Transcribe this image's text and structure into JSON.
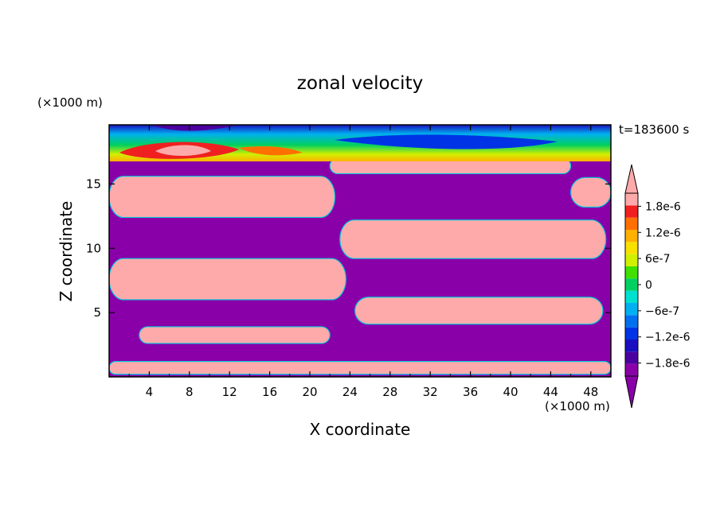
{
  "chart_data": {
    "type": "heatmap",
    "title": "zonal velocity",
    "xlabel": "X coordinate",
    "ylabel": "Z coordinate",
    "x_unit": "(×1000 m)",
    "y_unit": "(×1000 m)",
    "time_label": "t=183600 s",
    "xlim": [
      0,
      50
    ],
    "ylim": [
      0,
      19.6
    ],
    "x_ticks": [
      4,
      8,
      12,
      16,
      20,
      24,
      28,
      32,
      36,
      40,
      44,
      48
    ],
    "y_ticks": [
      5,
      10,
      15
    ],
    "colorbar": {
      "levels": [
        -2.1e-06,
        -1.8e-06,
        -1.5e-06,
        -1.2e-06,
        -9e-07,
        -6e-07,
        -3e-07,
        0,
        3e-07,
        6e-07,
        9e-07,
        1.2e-06,
        1.5e-06,
        1.8e-06,
        2.1e-06
      ],
      "labels": [
        "1.8e-6",
        "1.2e-6",
        "6e-7",
        "0",
        "−6e-7",
        "−1.2e-6",
        "−1.8e-6"
      ],
      "label_values": [
        1.8e-06,
        1.2e-06,
        6e-07,
        0,
        -6e-07,
        -1.2e-06,
        -1.8e-06
      ],
      "colors": [
        "#8a00a8",
        "#4b009f",
        "#1a0fc0",
        "#0033e6",
        "#0070f0",
        "#00b0f0",
        "#00e0d0",
        "#00d060",
        "#40e000",
        "#d0f000",
        "#f8e000",
        "#ffb000",
        "#ff7000",
        "#f02020",
        "#ffaaaa"
      ],
      "over_color": "#ffaaaa",
      "under_color": "#8a00a8"
    },
    "background_value": -2.2e-06,
    "bands": [
      {
        "description": "bottom layer",
        "value": 2.2e-06,
        "x": [
          0,
          50
        ],
        "z": [
          0.2,
          1.2
        ]
      },
      {
        "description": "lower left lobe",
        "value": 2.2e-06,
        "x": [
          3,
          22
        ],
        "z": [
          2.6,
          3.9
        ]
      },
      {
        "description": "middle left lobe",
        "value": 2.2e-06,
        "x": [
          0,
          23.6
        ],
        "z": [
          6.0,
          9.2
        ]
      },
      {
        "description": "middle right lobe",
        "value": 2.2e-06,
        "x": [
          24.5,
          49.2
        ],
        "z": [
          4.1,
          6.2
        ]
      },
      {
        "description": "upper right lobe",
        "value": 2.2e-06,
        "x": [
          23,
          49.5
        ],
        "z": [
          9.2,
          12.2
        ]
      },
      {
        "description": "upper left lobe",
        "value": 2.2e-06,
        "x": [
          0,
          22.5
        ],
        "z": [
          12.4,
          15.6
        ]
      },
      {
        "description": "right edge lobe",
        "value": 2.2e-06,
        "x": [
          46,
          50
        ],
        "z": [
          13.2,
          15.5
        ]
      },
      {
        "description": "top thin lobe",
        "value": 2.2e-06,
        "x": [
          22,
          46
        ],
        "z": [
          15.8,
          17.0
        ]
      }
    ],
    "top_layer": {
      "z": [
        17.0,
        19.6
      ],
      "value_range": [
        -2.2e-06,
        2.2e-06
      ]
    }
  }
}
